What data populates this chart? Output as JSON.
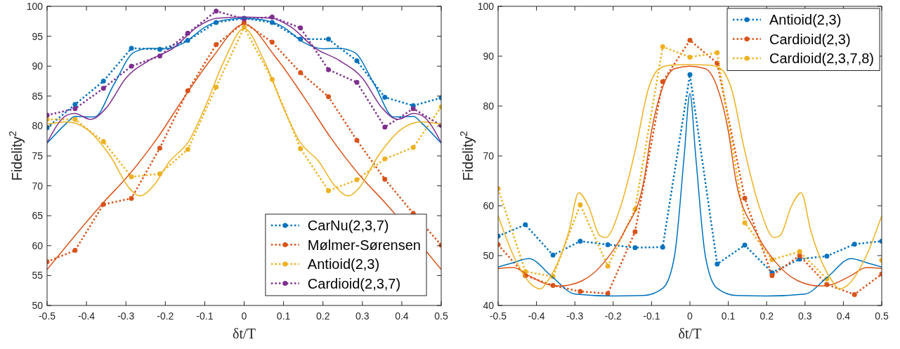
{
  "chart_data": [
    {
      "type": "line",
      "xlabel": "δt/T",
      "ylabel": "Fidelity$^{2}$",
      "xlim": [
        -0.5,
        0.5
      ],
      "xticks": [
        -0.5,
        -0.4,
        -0.3,
        -0.2,
        -0.1,
        0,
        0.1,
        0.2,
        0.3,
        0.4,
        0.5
      ],
      "ylim": [
        50,
        100
      ],
      "yticks": [
        50,
        55,
        60,
        65,
        70,
        75,
        80,
        85,
        90,
        95,
        100
      ],
      "grid": false,
      "legend": "bottom right",
      "series": [
        {
          "name": "CarNu(2,3,7)",
          "color": "#0072bd",
          "marker": "circle",
          "line_style": "dotted",
          "x": [
            -0.5,
            -0.429,
            -0.357,
            -0.286,
            -0.214,
            -0.143,
            -0.071,
            0,
            0.071,
            0.143,
            0.214,
            0.286,
            0.357,
            0.429,
            0.5
          ],
          "values": [
            79.7,
            83.6,
            87.5,
            93.0,
            92.8,
            94.3,
            97.3,
            98.0,
            97.3,
            94.5,
            94.5,
            90.9,
            84.8,
            83.4,
            84.7
          ]
        },
        {
          "name": "Mølmer-Sørensen",
          "color": "#d95319",
          "marker": "circle",
          "line_style": "dotted",
          "x": [
            -0.5,
            -0.429,
            -0.357,
            -0.286,
            -0.214,
            -0.143,
            -0.071,
            0,
            0.071,
            0.143,
            0.214,
            0.286,
            0.357,
            0.429,
            0.5
          ],
          "values": [
            57.3,
            59.2,
            66.9,
            67.9,
            76.3,
            85.9,
            93.6,
            97.3,
            94.0,
            88.9,
            84.9,
            77.6,
            71.1,
            65.4,
            60.1
          ]
        },
        {
          "name": "Antioid(2,3)",
          "color": "#edb120",
          "marker": "circle",
          "line_style": "dotted",
          "x": [
            -0.5,
            -0.429,
            -0.357,
            -0.286,
            -0.214,
            -0.143,
            -0.071,
            0,
            0.071,
            0.143,
            0.214,
            0.286,
            0.357,
            0.429,
            0.5
          ],
          "values": [
            81.1,
            81.1,
            77.4,
            71.5,
            72.0,
            76.1,
            86.5,
            96.5,
            87.8,
            76.2,
            69.2,
            71.0,
            74.5,
            76.4,
            83.2
          ]
        },
        {
          "name": "Cardioid(2,3,7)",
          "color": "#7e2f8e",
          "marker": "circle",
          "line_style": "dotted",
          "x": [
            -0.5,
            -0.429,
            -0.357,
            -0.286,
            -0.214,
            -0.143,
            -0.071,
            0,
            0.071,
            0.143,
            0.214,
            0.286,
            0.357,
            0.429,
            0.5
          ],
          "values": [
            81.8,
            82.9,
            86.3,
            90.0,
            91.7,
            95.5,
            99.2,
            97.9,
            98.2,
            96.4,
            89.4,
            87.3,
            79.8,
            82.9,
            80.1
          ]
        },
        {
          "color": "#0072bd",
          "marker": "none",
          "line_style": "solid",
          "x": [
            -0.5,
            -0.45,
            -0.43,
            -0.38,
            -0.33,
            -0.28,
            -0.24,
            -0.2,
            -0.15,
            -0.1,
            -0.05,
            0,
            0.05,
            0.1,
            0.15,
            0.2,
            0.24,
            0.28,
            0.33,
            0.38,
            0.43,
            0.45,
            0.5
          ],
          "values": [
            77.1,
            80.5,
            81.6,
            81.5,
            87,
            92.3,
            93,
            92.9,
            94,
            96.5,
            97.7,
            98,
            97.7,
            96.5,
            94,
            92.9,
            93,
            92.3,
            87,
            81.5,
            81.6,
            80.5,
            77.1
          ]
        },
        {
          "color": "#d95319",
          "marker": "none",
          "line_style": "solid",
          "x": [
            -0.5,
            -0.36,
            -0.29,
            -0.22,
            -0.15,
            -0.08,
            0,
            0.08,
            0.15,
            0.22,
            0.29,
            0.36,
            0.5
          ],
          "values": [
            56,
            67,
            72,
            78,
            85,
            91.5,
            97,
            91.5,
            85,
            78,
            72,
            67,
            56
          ]
        },
        {
          "color": "#edb120",
          "marker": "none",
          "line_style": "solid",
          "x": [
            -0.5,
            -0.45,
            -0.4,
            -0.34,
            -0.29,
            -0.265,
            -0.23,
            -0.19,
            -0.14,
            -0.1,
            -0.05,
            0,
            0.05,
            0.1,
            0.14,
            0.19,
            0.23,
            0.265,
            0.29,
            0.34,
            0.4,
            0.45,
            0.5
          ],
          "values": [
            80.3,
            80.7,
            79.5,
            75,
            69.5,
            68.3,
            70,
            74,
            77.5,
            83,
            91,
            96.3,
            91,
            83,
            77.5,
            74,
            70,
            68.3,
            69.5,
            75,
            79.5,
            80.7,
            80.3
          ]
        },
        {
          "color": "#7e2f8e",
          "marker": "none",
          "line_style": "solid",
          "x": [
            -0.5,
            -0.45,
            -0.43,
            -0.39,
            -0.35,
            -0.3,
            -0.24,
            -0.18,
            -0.12,
            -0.07,
            0,
            0.07,
            0.12,
            0.18,
            0.24,
            0.3,
            0.35,
            0.39,
            0.43,
            0.45,
            0.5
          ],
          "values": [
            77.2,
            81.8,
            82.1,
            81.1,
            83,
            88,
            91,
            93,
            96.5,
            98,
            98.2,
            98,
            96.5,
            93,
            91,
            88,
            83,
            81.1,
            82.1,
            81.8,
            77.2
          ]
        }
      ]
    },
    {
      "type": "line",
      "xlabel": "δt/T",
      "ylabel": "Fidelity$^{2}$",
      "xlim": [
        -0.5,
        0.5
      ],
      "xticks": [
        -0.5,
        -0.4,
        -0.3,
        -0.2,
        -0.1,
        0,
        0.1,
        0.2,
        0.3,
        0.4,
        0.5
      ],
      "ylim": [
        40,
        100
      ],
      "yticks": [
        40,
        50,
        60,
        70,
        80,
        90,
        100
      ],
      "grid": false,
      "legend": "top right",
      "series": [
        {
          "name": "Antioid(2,3)",
          "color": "#0072bd",
          "marker": "circle",
          "line_style": "dotted",
          "x": [
            -0.5,
            -0.429,
            -0.357,
            -0.286,
            -0.214,
            -0.143,
            -0.071,
            0,
            0.071,
            0.143,
            0.214,
            0.286,
            0.357,
            0.429,
            0.5
          ],
          "values": [
            53.9,
            56.2,
            50.1,
            52.9,
            52.2,
            51.6,
            51.7,
            86.3,
            48.3,
            52.1,
            46.6,
            49.3,
            49.9,
            52.3,
            52.9
          ]
        },
        {
          "name": "Cardioid(2,3)",
          "color": "#d95319",
          "marker": "circle",
          "line_style": "dotted",
          "x": [
            -0.5,
            -0.429,
            -0.357,
            -0.286,
            -0.214,
            -0.143,
            -0.071,
            0,
            0.071,
            0.143,
            0.214,
            0.286,
            0.357,
            0.429,
            0.5
          ],
          "values": [
            52.2,
            46.0,
            44.0,
            42.8,
            42.4,
            54.8,
            84.9,
            93.2,
            88.6,
            61.5,
            46.0,
            50.0,
            44.2,
            42.2,
            46.3
          ]
        },
        {
          "name": "Cardioid(2,3,7,8)",
          "color": "#edb120",
          "marker": "circle",
          "line_style": "dotted",
          "x": [
            -0.5,
            -0.429,
            -0.357,
            -0.286,
            -0.214,
            -0.143,
            -0.071,
            0,
            0.071,
            0.143,
            0.214,
            0.286,
            0.357,
            0.429,
            0.5
          ],
          "values": [
            63.4,
            46.8,
            45.8,
            60.2,
            47.9,
            59.3,
            91.9,
            89.8,
            90.7,
            56.6,
            49.2,
            50.8,
            45.3,
            null,
            49.1
          ]
        },
        {
          "color": "#0072bd",
          "marker": "none",
          "line_style": "solid",
          "x": [
            -0.5,
            -0.46,
            -0.42,
            -0.36,
            -0.3,
            -0.2,
            -0.12,
            -0.07,
            -0.04,
            -0.015,
            0,
            0.015,
            0.04,
            0.07,
            0.12,
            0.2,
            0.3,
            0.36,
            0.42,
            0.46,
            0.5
          ],
          "values": [
            47.7,
            48.6,
            49.4,
            45.8,
            42.3,
            41.9,
            42,
            43.5,
            50,
            70,
            82.5,
            70,
            50,
            43.5,
            42,
            41.9,
            42.3,
            45.8,
            49.4,
            48.6,
            47.7
          ]
        },
        {
          "color": "#d95319",
          "marker": "none",
          "line_style": "solid",
          "x": [
            -0.5,
            -0.46,
            -0.42,
            -0.37,
            -0.34,
            -0.28,
            -0.22,
            -0.17,
            -0.12,
            -0.1,
            -0.07,
            -0.04,
            0,
            0.04,
            0.07,
            0.1,
            0.12,
            0.17,
            0.22,
            0.28,
            0.34,
            0.37,
            0.42,
            0.46,
            0.5
          ],
          "values": [
            47.4,
            47.6,
            46,
            44.2,
            43.9,
            45,
            49,
            55,
            65,
            75,
            84,
            87.5,
            88,
            87.5,
            84,
            75,
            65,
            55,
            49,
            45,
            43.9,
            44.2,
            46,
            47.6,
            47.4
          ]
        },
        {
          "color": "#edb120",
          "marker": "none",
          "line_style": "solid",
          "x": [
            -0.5,
            -0.46,
            -0.41,
            -0.39,
            -0.37,
            -0.315,
            -0.29,
            -0.265,
            -0.235,
            -0.22,
            -0.18,
            -0.14,
            -0.11,
            -0.08,
            -0.05,
            0,
            0.05,
            0.08,
            0.11,
            0.14,
            0.18,
            0.22,
            0.235,
            0.265,
            0.29,
            0.315,
            0.37,
            0.39,
            0.41,
            0.46,
            0.5
          ],
          "values": [
            58,
            50,
            44,
            43.3,
            45,
            55,
            62.6,
            60,
            54,
            53.6,
            60,
            72,
            83,
            87.5,
            88.2,
            88.3,
            88.2,
            87.5,
            83,
            72,
            60,
            53.6,
            54,
            60,
            62.6,
            55,
            45,
            43.3,
            44,
            50,
            58
          ]
        }
      ]
    }
  ]
}
